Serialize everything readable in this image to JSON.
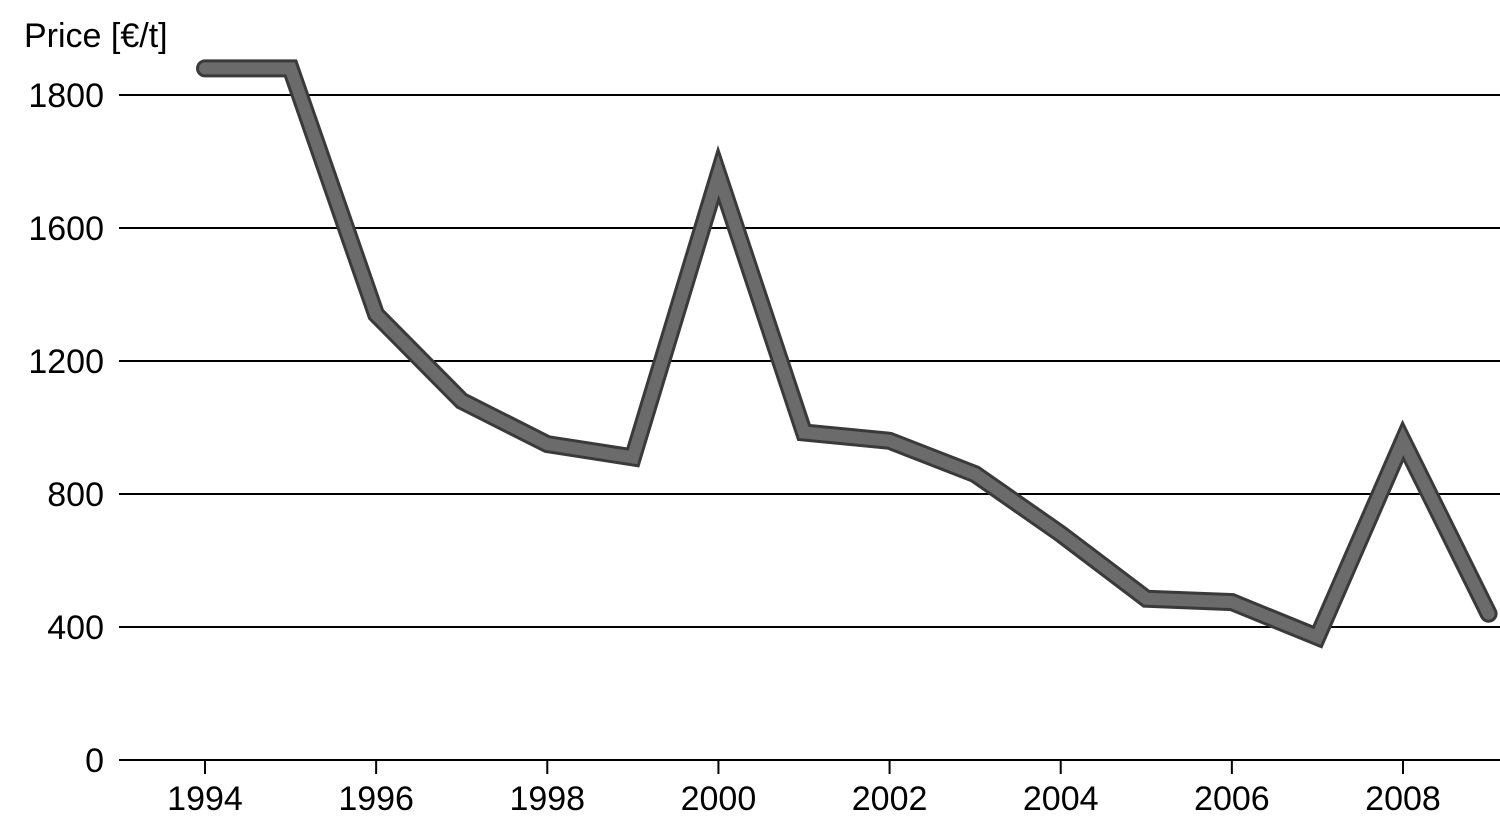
{
  "chart_data": {
    "type": "line",
    "title": "",
    "xlabel": "",
    "ylabel": "Price [€/t]",
    "x": [
      1994,
      1995,
      1996,
      1997,
      1998,
      1999,
      2000,
      2001,
      2002,
      2003,
      2004,
      2005,
      2006,
      2007,
      2008,
      2009
    ],
    "series": [
      {
        "values": [
          1840,
          1840,
          1340,
          1080,
          950,
          910,
          1680,
          985,
          960,
          860,
          680,
          485,
          475,
          370,
          960,
          440
        ]
      }
    ],
    "xticks": [
      "1994",
      "1996",
      "1998",
      "2000",
      "2002",
      "2004",
      "2006",
      "2008"
    ],
    "yticks": [
      "0",
      "400",
      "800",
      "1200",
      "1600",
      "1800"
    ],
    "ylim": [
      0,
      2000
    ],
    "xlim": [
      1993,
      2009.1
    ],
    "grid": "horizontal",
    "legend": "none",
    "colors": {
      "line_fill": "#6b6b6b",
      "line_outline": "#3a3a3a",
      "grid": "#000000",
      "text": "#000000"
    }
  }
}
